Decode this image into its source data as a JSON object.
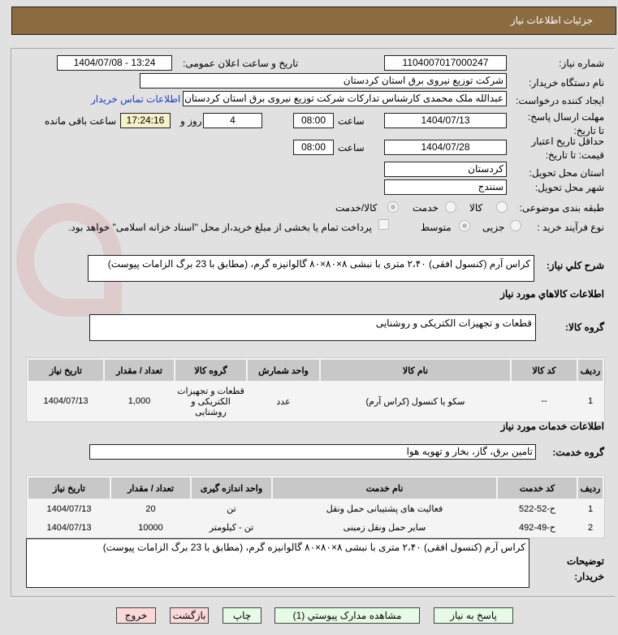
{
  "header": {
    "title": "جزئیات اطلاعات نیاز"
  },
  "form": {
    "need_number_label": "شماره نیاز:",
    "need_number": "1104007017000247",
    "announce_label": "تاریخ و ساعت اعلان عمومی:",
    "announce_value": "1404/07/08 - 13:24",
    "buyer_label": "نام دستگاه خریدار:",
    "buyer": "شرکت توزیع نیروی برق استان کردستان",
    "creator_label": "ایجاد کننده درخواست:",
    "creator": "عبدالله ملک محمدی کارشناس تدارکات شرکت توزیع نیروی برق استان کردستان",
    "contact_link": "اطلاعات تماس خریدار",
    "deadline_label": "مهلت ارسال پاسخ: تا تاریخ:",
    "deadline_date": "1404/07/13",
    "time_label": "ساعت",
    "deadline_time": "08:00",
    "days": "4",
    "days_label": "روز و",
    "remaining": "17:24:16",
    "remaining_label": "ساعت باقی مانده",
    "validity_label": "حداقل تاریخ اعتبار قیمت: تا تاریخ:",
    "validity_date": "1404/07/28",
    "validity_time": "08:00",
    "province_label": "استان محل تحویل:",
    "province": "کردستان",
    "city_label": "شهر محل تحویل:",
    "city": "سنندج",
    "category_label": "طبقه بندی موضوعی:",
    "category_options": [
      "کالا",
      "خدمت",
      "کالا/خدمت"
    ],
    "category_selected": "کالا/خدمت",
    "process_label": "نوع فرآیند خرید :",
    "process_options": [
      "جزیی",
      "متوسط"
    ],
    "process_selected": "متوسط",
    "payment_note": "پرداخت تمام یا بخشی از مبلغ خرید،از محل \"اسناد خزانه اسلامی\" خواهد بود."
  },
  "watermark": "AriaTender.net",
  "summary": {
    "label": "شرح کلي نياز:",
    "text": "کراس آرم (کنسول افقی) ۲،۴۰ متری با نبشی ۸×۸۰×۸۰ گالوانیزه گرم،  (مطابق با 23 برگ الزامات پیوست)"
  },
  "goods": {
    "title": "اطلاعات کالاهاي مورد نياز",
    "group_label": "گروه کالا:",
    "group": "قطعات و تجهیزات الکتریکی و روشنایی",
    "columns": [
      "ردیف",
      "کد کالا",
      "نام کالا",
      "واحد شمارش",
      "گروه کالا",
      "تعداد / مقدار",
      "تاریخ نیاز"
    ],
    "rows": [
      [
        "1",
        "--",
        "سکو یا کنسول (کراس آرم)",
        "عدد",
        "قطعات و تجهیزات الکتریکی و روشنایی",
        "1,000",
        "1404/07/13"
      ]
    ]
  },
  "services": {
    "title": "اطلاعات خدمات مورد نياز",
    "group_label": "گروه خدمت:",
    "group": "تامین برق، گاز، بخار و تهویه هوا",
    "columns": [
      "ردیف",
      "کد خدمت",
      "نام خدمت",
      "واحد اندازه گیری",
      "تعداد / مقدار",
      "تاریخ نیاز"
    ],
    "rows": [
      [
        "1",
        "ح-52-522",
        "فعالیت های پشتیبانی حمل ونقل",
        "تن",
        "20",
        "1404/07/13"
      ],
      [
        "2",
        "ح-49-492",
        "سایر حمل ونقل زمینی",
        "تن - کیلومتر",
        "10000",
        "1404/07/13"
      ]
    ]
  },
  "buyer_notes": {
    "label": "توضیحات خریدار:",
    "text": "کراس آرم (کنسول افقی) ۲،۴۰ متری با نبشی ۸×۸۰×۸۰ گالوانیزه گرم،  (مطابق با 23 برگ الزامات پیوست)"
  },
  "buttons": {
    "reply": "پاسخ به نیاز",
    "attachments": "مشاهده مدارک پیوستي (1)",
    "print": "چاپ",
    "back": "بازگشت",
    "exit": "خروج"
  }
}
